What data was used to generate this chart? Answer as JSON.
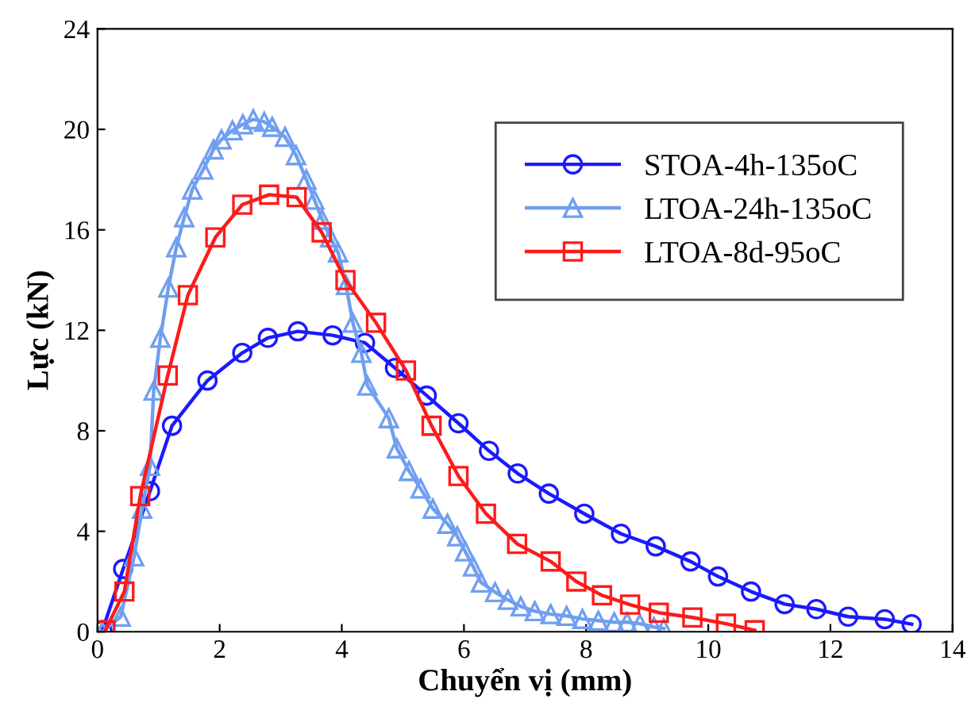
{
  "chart_data": {
    "type": "line",
    "xlabel": "Chuyển vị (mm)",
    "ylabel": "Lực (kN)",
    "xlim": [
      0,
      14
    ],
    "xticks": [
      0,
      2,
      4,
      6,
      8,
      10,
      12,
      14
    ],
    "ylim": [
      0,
      24
    ],
    "yticks": [
      0,
      4,
      8,
      12,
      16,
      20,
      24
    ],
    "grid": false,
    "legend": "top right",
    "series": [
      {
        "name": "STOA-4h-135oC",
        "color": "#1a1aff",
        "marker": "circle",
        "x": [
          0.08,
          0.42,
          0.86,
          1.22,
          1.8,
          2.37,
          2.79,
          3.28,
          3.85,
          4.38,
          4.87,
          5.39,
          5.91,
          6.41,
          6.88,
          7.39,
          7.97,
          8.57,
          9.14,
          9.71,
          10.16,
          10.7,
          11.25,
          11.77,
          12.29,
          12.89,
          13.33
        ],
        "values": [
          0.06,
          2.5,
          5.6,
          8.2,
          10.0,
          11.1,
          11.7,
          11.96,
          11.8,
          11.5,
          10.5,
          9.4,
          8.3,
          7.2,
          6.3,
          5.5,
          4.7,
          3.9,
          3.4,
          2.8,
          2.2,
          1.6,
          1.1,
          0.9,
          0.6,
          0.5,
          0.3
        ]
      },
      {
        "name": "LTOA-24h-135oC",
        "color": "#6f9ff0",
        "marker": "triangle",
        "x": [
          0.08,
          0.38,
          0.6,
          0.73,
          0.86,
          0.92,
          1.03,
          1.16,
          1.29,
          1.42,
          1.55,
          1.73,
          1.9,
          2.03,
          2.21,
          2.38,
          2.55,
          2.73,
          2.86,
          3.07,
          3.25,
          3.42,
          3.55,
          3.68,
          3.81,
          3.94,
          4.07,
          4.18,
          4.32,
          4.42,
          4.77,
          4.9,
          5.1,
          5.29,
          5.49,
          5.73,
          5.89,
          6.02,
          6.15,
          6.28,
          6.51,
          6.72,
          6.93,
          7.16,
          7.42,
          7.68,
          7.94,
          8.2,
          8.46,
          8.67,
          8.88,
          9.11,
          9.27
        ],
        "values": [
          0.0,
          0.6,
          3.0,
          4.9,
          6.6,
          9.6,
          11.7,
          13.7,
          15.3,
          16.5,
          17.6,
          18.4,
          19.2,
          19.6,
          19.96,
          20.2,
          20.4,
          20.3,
          20.1,
          19.7,
          18.97,
          18.0,
          17.2,
          16.4,
          15.7,
          15.1,
          13.8,
          12.3,
          11.1,
          9.8,
          8.5,
          7.3,
          6.4,
          5.7,
          4.9,
          4.3,
          3.8,
          3.2,
          2.6,
          1.96,
          1.58,
          1.27,
          1.01,
          0.82,
          0.7,
          0.63,
          0.51,
          0.44,
          0.38,
          0.38,
          0.32,
          0.19,
          0.13
        ]
      },
      {
        "name": "LTOA-8d-95oC",
        "color": "#ff1a1a",
        "marker": "square",
        "x": [
          0.13,
          0.44,
          0.7,
          1.15,
          1.48,
          1.93,
          2.37,
          2.81,
          3.26,
          3.67,
          4.06,
          4.56,
          5.05,
          5.47,
          5.91,
          6.36,
          6.87,
          7.42,
          7.84,
          8.26,
          8.72,
          9.19,
          9.74,
          10.29,
          10.76
        ],
        "values": [
          0.06,
          1.6,
          5.4,
          10.2,
          13.4,
          15.7,
          17.0,
          17.4,
          17.3,
          15.9,
          14.0,
          12.3,
          10.4,
          8.2,
          6.2,
          4.7,
          3.5,
          2.8,
          2.0,
          1.45,
          1.08,
          0.76,
          0.57,
          0.32,
          0.06
        ]
      }
    ]
  }
}
